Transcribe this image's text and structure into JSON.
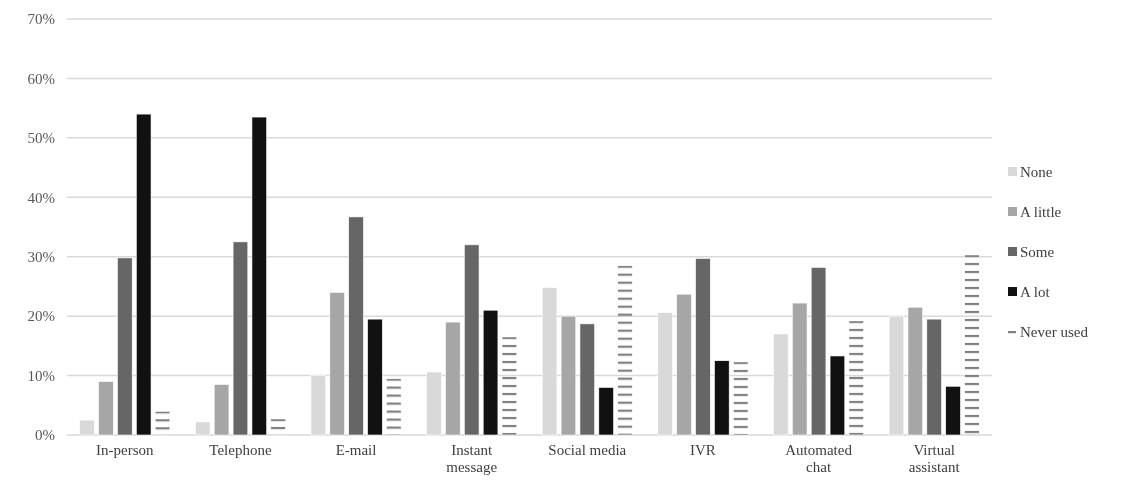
{
  "chart_data": {
    "type": "bar",
    "categories": [
      "In-person",
      "Telephone",
      "E-mail",
      "Instant message",
      "Social media",
      "IVR",
      "Automated chat",
      "Virtual assistant"
    ],
    "series": [
      {
        "name": "None",
        "color": "#d9d9d9",
        "values": [
          2.5,
          2.2,
          10,
          10.6,
          24.8,
          20.6,
          17,
          20
        ]
      },
      {
        "name": "A little",
        "color": "#a6a6a6",
        "values": [
          9,
          8.5,
          24,
          19,
          20,
          23.7,
          22.2,
          21.5
        ]
      },
      {
        "name": "Some",
        "color": "#666666",
        "values": [
          29.8,
          32.5,
          36.7,
          32,
          18.7,
          29.7,
          28.2,
          19.5
        ]
      },
      {
        "name": "A lot",
        "color": "#111111",
        "values": [
          54,
          53.5,
          19.5,
          21,
          8,
          12.5,
          13.3,
          8.2
        ]
      },
      {
        "name": "Never used",
        "color": "#808080",
        "line_style": "dashed",
        "values": [
          4,
          2.7,
          9.5,
          16.5,
          28.5,
          12.3,
          19.2,
          30.3
        ]
      }
    ],
    "ylim": [
      0,
      70
    ],
    "yticks": [
      {
        "value": 0,
        "label": "0%"
      },
      {
        "value": 10,
        "label": "10%"
      },
      {
        "value": 20,
        "label": "20%"
      },
      {
        "value": 30,
        "label": "30%"
      },
      {
        "value": 40,
        "label": "40%"
      },
      {
        "value": 50,
        "label": "50%"
      },
      {
        "value": 60,
        "label": "60%"
      },
      {
        "value": 70,
        "label": "70%"
      }
    ],
    "grid": "y",
    "legend": "right"
  }
}
